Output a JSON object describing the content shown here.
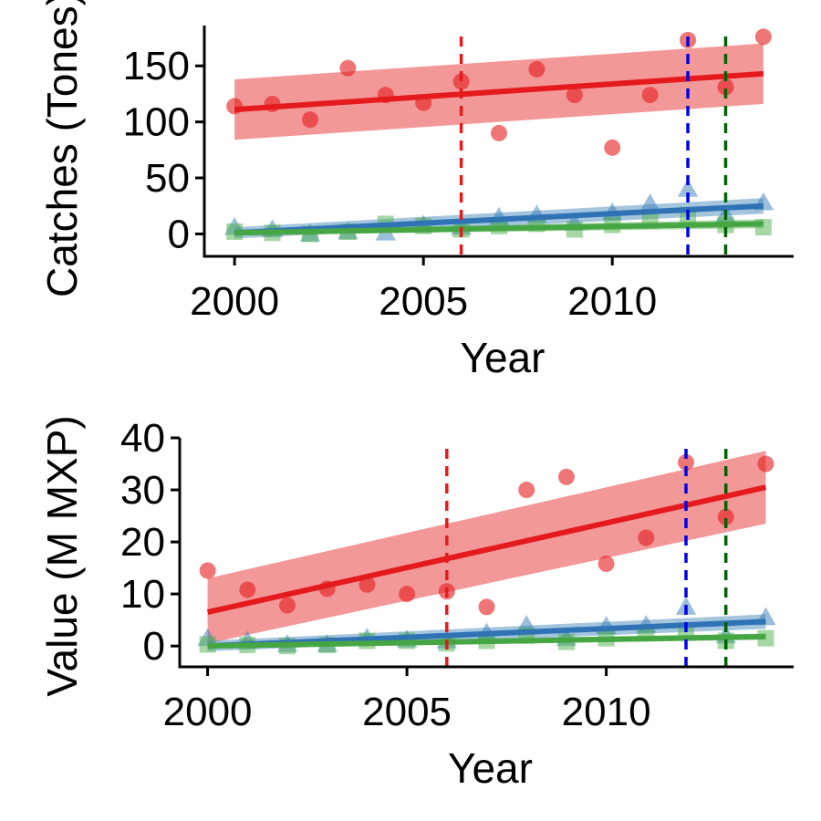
{
  "chart_data": [
    {
      "type": "scatter",
      "xlabel": "Year",
      "ylabel": "Catches (Tones)",
      "xlim": [
        1999.2,
        2014.8
      ],
      "ylim": [
        -20,
        186
      ],
      "xticks": [
        2000,
        2005,
        2010
      ],
      "yticks": [
        0,
        50,
        100,
        150
      ],
      "grid": false,
      "vlines": [
        {
          "x": 2006,
          "color": "#e41a1c"
        },
        {
          "x": 2012,
          "color": "#0000ee"
        },
        {
          "x": 2013,
          "color": "#006400"
        }
      ],
      "series": [
        {
          "marker": "circle",
          "color": "#e41a1c",
          "x": [
            2000,
            2001,
            2002,
            2003,
            2004,
            2005,
            2006,
            2007,
            2008,
            2009,
            2010,
            2011,
            2012,
            2013,
            2014
          ],
          "y": [
            114,
            116,
            102,
            148,
            124,
            117,
            136,
            90,
            147,
            124,
            77,
            124,
            173,
            131,
            176
          ],
          "fit": [
            111,
            143
          ],
          "band_lower": [
            84,
            116
          ],
          "band_upper": [
            138,
            170
          ]
        },
        {
          "marker": "triangle",
          "color": "#377eb8",
          "x": [
            2000,
            2001,
            2002,
            2003,
            2004,
            2005,
            2006,
            2007,
            2008,
            2009,
            2010,
            2011,
            2012,
            2013,
            2014
          ],
          "y": [
            6,
            4,
            0,
            2,
            1,
            8,
            6,
            15,
            17,
            10,
            19,
            27,
            40,
            17,
            28
          ],
          "fit": [
            1,
            25
          ],
          "band_lower": [
            -4,
            18
          ],
          "band_upper": [
            6,
            32
          ]
        },
        {
          "marker": "square",
          "color": "#4daf4a",
          "x": [
            2000,
            2001,
            2002,
            2003,
            2004,
            2005,
            2006,
            2007,
            2008,
            2009,
            2010,
            2011,
            2012,
            2013,
            2014
          ],
          "y": [
            2,
            1,
            0,
            2,
            9,
            7,
            4,
            7,
            9,
            4,
            8,
            12,
            17,
            8,
            6
          ],
          "fit": [
            1,
            9
          ],
          "band_lower": [
            -1,
            5
          ],
          "band_upper": [
            3,
            13
          ]
        }
      ]
    },
    {
      "type": "scatter",
      "xlabel": "Year",
      "ylabel": "Value (M MXP)",
      "xlim": [
        1999.3,
        2014.7
      ],
      "ylim": [
        -4,
        40
      ],
      "xticks": [
        2000,
        2005,
        2010
      ],
      "yticks": [
        0,
        10,
        20,
        30,
        40
      ],
      "grid": false,
      "vlines": [
        {
          "x": 2006,
          "color": "#e41a1c"
        },
        {
          "x": 2012,
          "color": "#0000ee"
        },
        {
          "x": 2013,
          "color": "#006400"
        }
      ],
      "series": [
        {
          "marker": "circle",
          "color": "#e41a1c",
          "x": [
            2000,
            2001,
            2002,
            2003,
            2004,
            2005,
            2006,
            2007,
            2008,
            2009,
            2010,
            2011,
            2012,
            2013,
            2014
          ],
          "y": [
            14.5,
            10.8,
            7.8,
            11.0,
            11.8,
            10.0,
            10.5,
            7.5,
            30.0,
            32.5,
            15.8,
            20.8,
            35.3,
            24.8,
            35.0
          ],
          "fit": [
            6.5,
            30.5
          ],
          "band_lower": [
            0.5,
            23.5
          ],
          "band_upper": [
            13,
            37.5
          ]
        },
        {
          "marker": "triangle",
          "color": "#377eb8",
          "x": [
            2000,
            2001,
            2002,
            2003,
            2004,
            2005,
            2006,
            2007,
            2008,
            2009,
            2010,
            2011,
            2012,
            2013,
            2014
          ],
          "y": [
            1.5,
            1.0,
            0.3,
            0.3,
            1.5,
            1.2,
            1.0,
            2.5,
            4.0,
            1.5,
            3.8,
            4.0,
            7.5,
            2.0,
            5.5
          ],
          "fit": [
            0.0,
            4.7
          ],
          "band_lower": [
            -1.0,
            3.3
          ],
          "band_upper": [
            1.0,
            6.1
          ]
        },
        {
          "marker": "square",
          "color": "#4daf4a",
          "x": [
            2000,
            2001,
            2002,
            2003,
            2004,
            2005,
            2006,
            2007,
            2008,
            2009,
            2010,
            2011,
            2012,
            2013,
            2014
          ],
          "y": [
            0.3,
            0.2,
            0.0,
            0.2,
            1.0,
            1.0,
            0.5,
            1.0,
            2.0,
            0.8,
            1.5,
            2.5,
            3.0,
            1.0,
            1.5
          ],
          "fit": [
            0.0,
            1.8
          ],
          "band_lower": [
            -0.4,
            1.2
          ],
          "band_upper": [
            0.4,
            2.4
          ]
        }
      ]
    }
  ]
}
